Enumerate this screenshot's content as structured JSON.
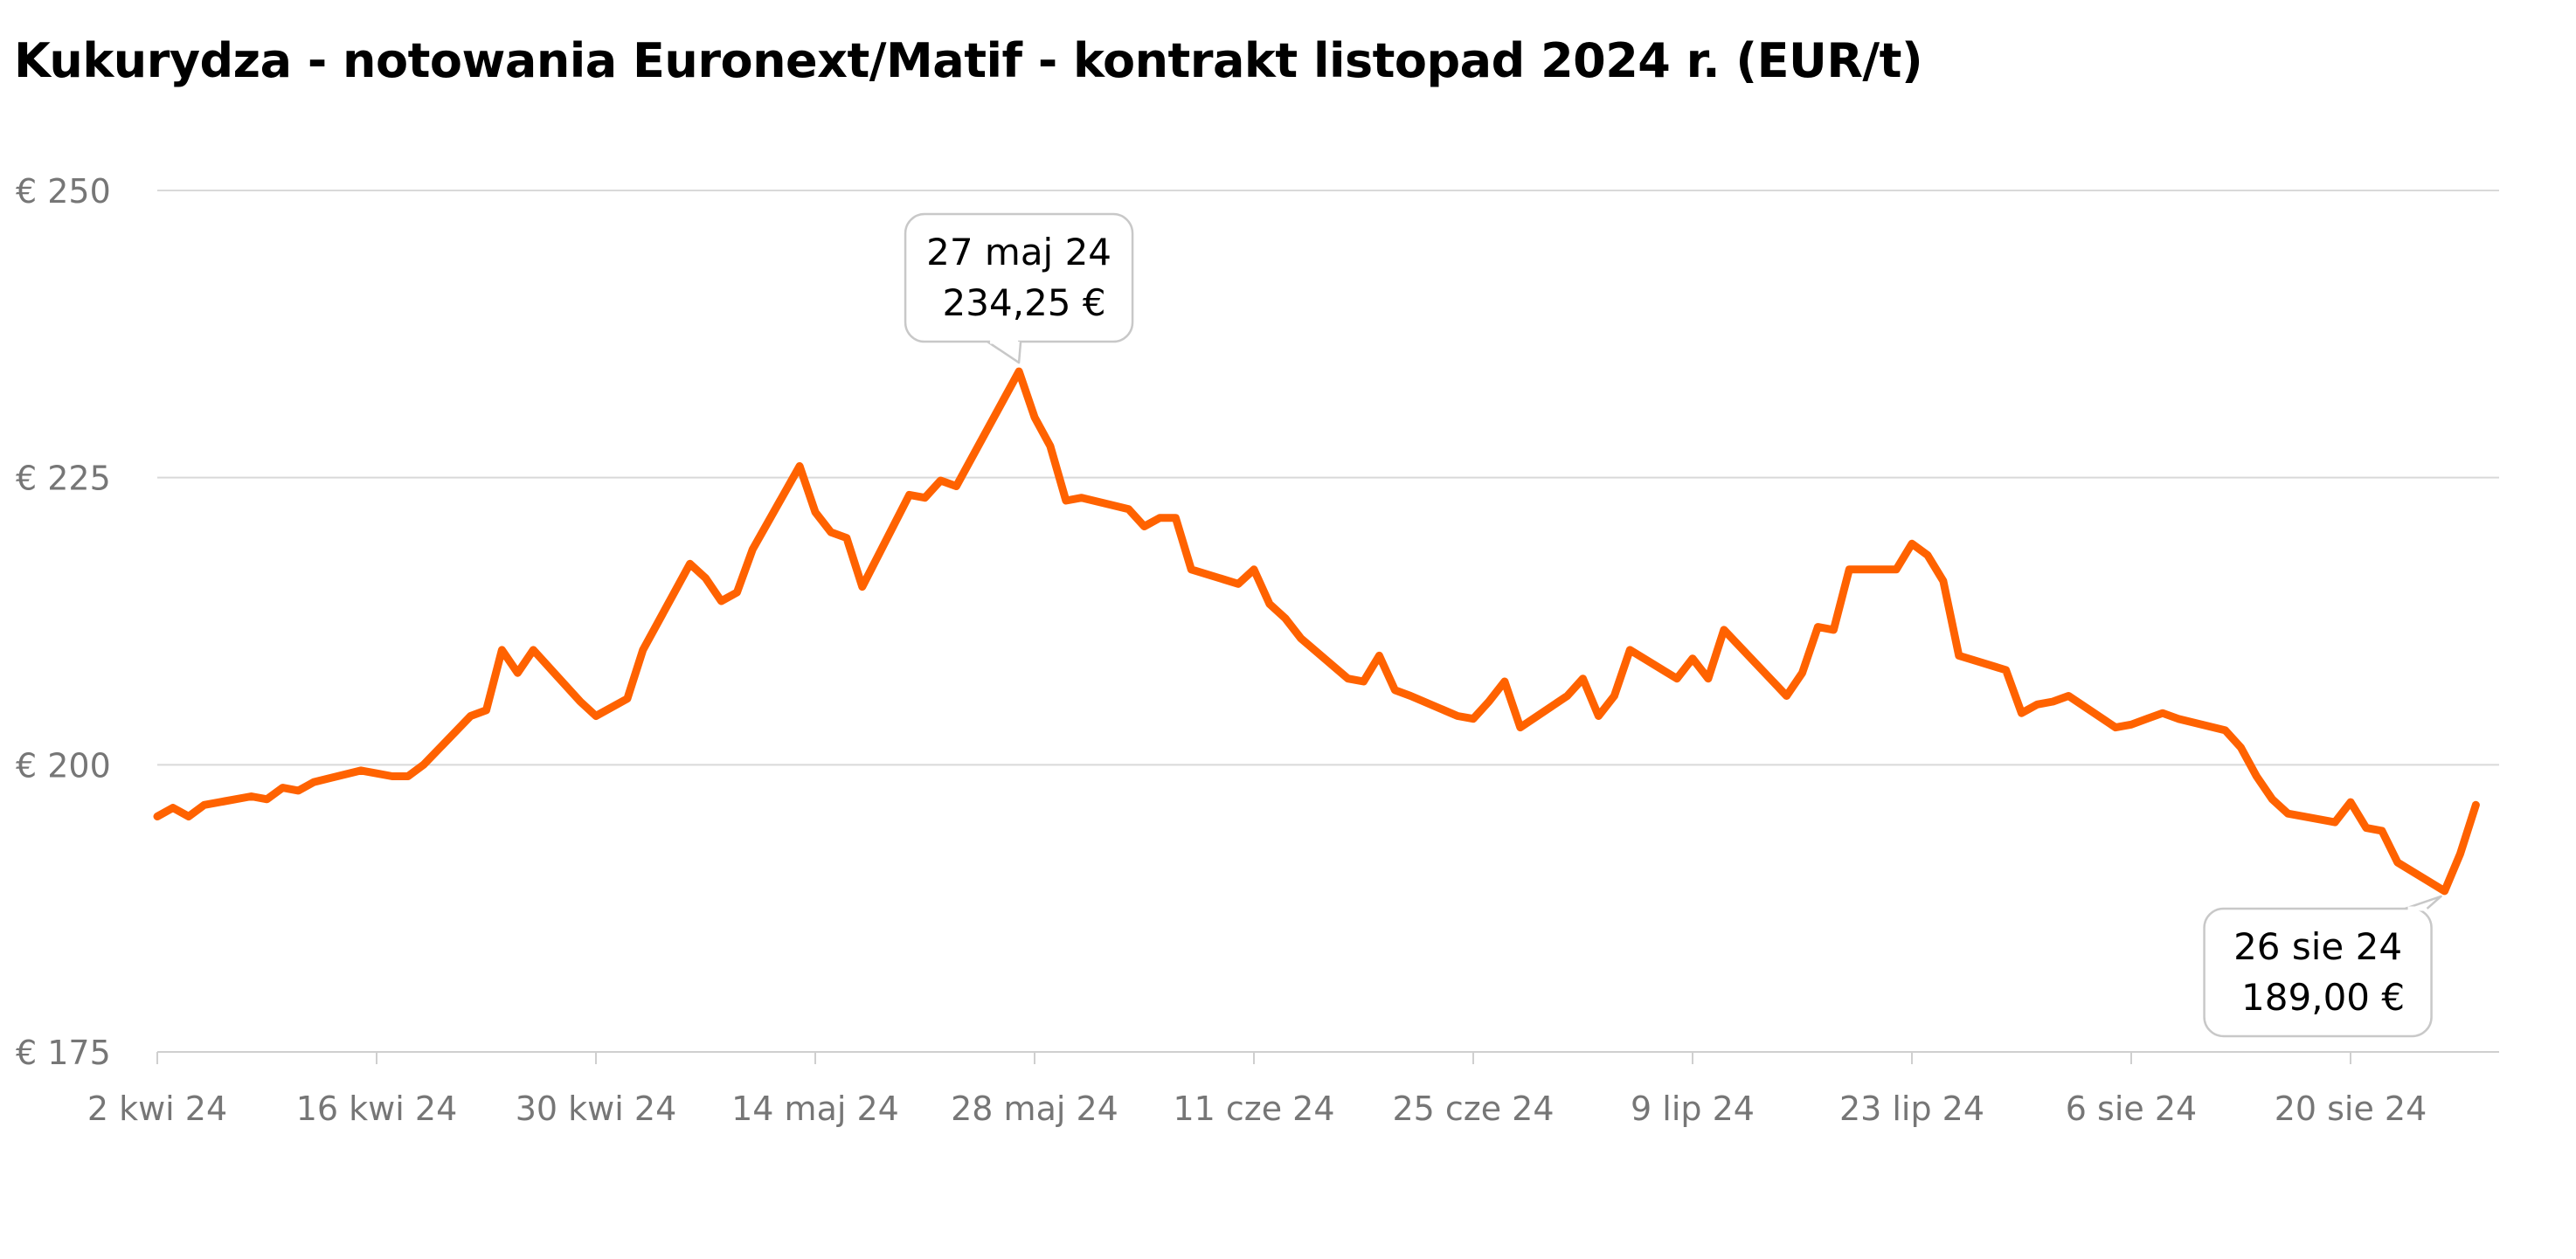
{
  "chart_data": {
    "type": "line",
    "title": "Kukurydza - notowania Euronext/Matif - kontrakt listopad 2024 r. (EUR/t)",
    "xlabel": "",
    "ylabel": "",
    "ylim": [
      175,
      250
    ],
    "y_ticks": [
      {
        "value": 250,
        "label": "€ 250"
      },
      {
        "value": 225,
        "label": "€ 225"
      },
      {
        "value": 200,
        "label": "€ 200"
      },
      {
        "value": 175,
        "label": "€ 175"
      }
    ],
    "x_ticks": [
      {
        "date": "2024-04-02",
        "label": "2 kwi 24"
      },
      {
        "date": "2024-04-16",
        "label": "16 kwi 24"
      },
      {
        "date": "2024-04-30",
        "label": "30 kwi 24"
      },
      {
        "date": "2024-05-14",
        "label": "14 maj 24"
      },
      {
        "date": "2024-05-28",
        "label": "28 maj 24"
      },
      {
        "date": "2024-06-11",
        "label": "11 cze 24"
      },
      {
        "date": "2024-06-25",
        "label": "25 cze 24"
      },
      {
        "date": "2024-07-09",
        "label": "9 lip 24"
      },
      {
        "date": "2024-07-23",
        "label": "23 lip 24"
      },
      {
        "date": "2024-08-06",
        "label": "6 sie 24"
      },
      {
        "date": "2024-08-20",
        "label": "20 sie 24"
      }
    ],
    "grid": true,
    "legend": "none",
    "line_color": "#FF6200",
    "series": [
      {
        "name": "",
        "points": [
          [
            "2024-04-02",
            195.5
          ],
          [
            "2024-04-03",
            196.25
          ],
          [
            "2024-04-04",
            195.5
          ],
          [
            "2024-04-05",
            196.5
          ],
          [
            "2024-04-08",
            197.25
          ],
          [
            "2024-04-09",
            197.0
          ],
          [
            "2024-04-10",
            198.0
          ],
          [
            "2024-04-11",
            197.75
          ],
          [
            "2024-04-12",
            198.5
          ],
          [
            "2024-04-15",
            199.5
          ],
          [
            "2024-04-16",
            199.25
          ],
          [
            "2024-04-17",
            199.0
          ],
          [
            "2024-04-18",
            199.0
          ],
          [
            "2024-04-19",
            200.0
          ],
          [
            "2024-04-22",
            204.25
          ],
          [
            "2024-04-23",
            204.75
          ],
          [
            "2024-04-24",
            210.0
          ],
          [
            "2024-04-25",
            208.0
          ],
          [
            "2024-04-26",
            210.0
          ],
          [
            "2024-04-29",
            205.5
          ],
          [
            "2024-04-30",
            204.25
          ],
          [
            "2024-05-02",
            205.75
          ],
          [
            "2024-05-03",
            210.0
          ],
          [
            "2024-05-06",
            217.5
          ],
          [
            "2024-05-07",
            216.25
          ],
          [
            "2024-05-08",
            214.25
          ],
          [
            "2024-05-09",
            215.0
          ],
          [
            "2024-05-10",
            218.75
          ],
          [
            "2024-05-13",
            226.0
          ],
          [
            "2024-05-14",
            222.0
          ],
          [
            "2024-05-15",
            220.25
          ],
          [
            "2024-05-16",
            219.75
          ],
          [
            "2024-05-17",
            215.5
          ],
          [
            "2024-05-20",
            223.5
          ],
          [
            "2024-05-21",
            223.25
          ],
          [
            "2024-05-22",
            224.75
          ],
          [
            "2024-05-23",
            224.25
          ],
          [
            "2024-05-27",
            234.25
          ],
          [
            "2024-05-28",
            230.25
          ],
          [
            "2024-05-29",
            227.75
          ],
          [
            "2024-05-30",
            223.0
          ],
          [
            "2024-05-31",
            223.25
          ],
          [
            "2024-06-03",
            222.25
          ],
          [
            "2024-06-04",
            220.75
          ],
          [
            "2024-06-05",
            221.5
          ],
          [
            "2024-06-06",
            221.5
          ],
          [
            "2024-06-07",
            217.0
          ],
          [
            "2024-06-10",
            215.75
          ],
          [
            "2024-06-11",
            217.0
          ],
          [
            "2024-06-12",
            214.0
          ],
          [
            "2024-06-13",
            212.75
          ],
          [
            "2024-06-14",
            211.0
          ],
          [
            "2024-06-17",
            207.5
          ],
          [
            "2024-06-18",
            207.25
          ],
          [
            "2024-06-19",
            209.5
          ],
          [
            "2024-06-20",
            206.5
          ],
          [
            "2024-06-21",
            206.0
          ],
          [
            "2024-06-24",
            204.25
          ],
          [
            "2024-06-25",
            204.0
          ],
          [
            "2024-06-26",
            205.5
          ],
          [
            "2024-06-27",
            207.25
          ],
          [
            "2024-06-28",
            203.25
          ],
          [
            "2024-07-01",
            206.0
          ],
          [
            "2024-07-02",
            207.5
          ],
          [
            "2024-07-03",
            204.25
          ],
          [
            "2024-07-04",
            206.0
          ],
          [
            "2024-07-05",
            210.0
          ],
          [
            "2024-07-08",
            207.5
          ],
          [
            "2024-07-09",
            209.25
          ],
          [
            "2024-07-10",
            207.5
          ],
          [
            "2024-07-11",
            211.75
          ],
          [
            "2024-07-15",
            206.0
          ],
          [
            "2024-07-16",
            208.0
          ],
          [
            "2024-07-17",
            212.0
          ],
          [
            "2024-07-18",
            211.75
          ],
          [
            "2024-07-19",
            217.0
          ],
          [
            "2024-07-22",
            217.0
          ],
          [
            "2024-07-23",
            219.25
          ],
          [
            "2024-07-24",
            218.25
          ],
          [
            "2024-07-25",
            216.0
          ],
          [
            "2024-07-26",
            209.5
          ],
          [
            "2024-07-29",
            208.25
          ],
          [
            "2024-07-30",
            204.5
          ],
          [
            "2024-07-31",
            205.25
          ],
          [
            "2024-08-01",
            205.5
          ],
          [
            "2024-08-02",
            206.0
          ],
          [
            "2024-08-05",
            203.25
          ],
          [
            "2024-08-06",
            203.5
          ],
          [
            "2024-08-07",
            204.0
          ],
          [
            "2024-08-08",
            204.5
          ],
          [
            "2024-08-09",
            204.0
          ],
          [
            "2024-08-12",
            203.0
          ],
          [
            "2024-08-13",
            201.5
          ],
          [
            "2024-08-14",
            199.0
          ],
          [
            "2024-08-15",
            197.0
          ],
          [
            "2024-08-16",
            195.75
          ],
          [
            "2024-08-19",
            195.0
          ],
          [
            "2024-08-20",
            196.75
          ],
          [
            "2024-08-21",
            194.5
          ],
          [
            "2024-08-22",
            194.25
          ],
          [
            "2024-08-23",
            191.5
          ],
          [
            "2024-08-26",
            189.0
          ],
          [
            "2024-08-27",
            192.25
          ],
          [
            "2024-08-28",
            196.5
          ]
        ]
      }
    ],
    "annotations": [
      {
        "date": "2024-05-27",
        "value": 234.25,
        "label_date": "27 maj 24",
        "label_value": "234,25 €"
      },
      {
        "date": "2024-08-26",
        "value": 189.0,
        "label_date": "26 sie 24",
        "label_value": "189,00 €"
      }
    ]
  }
}
